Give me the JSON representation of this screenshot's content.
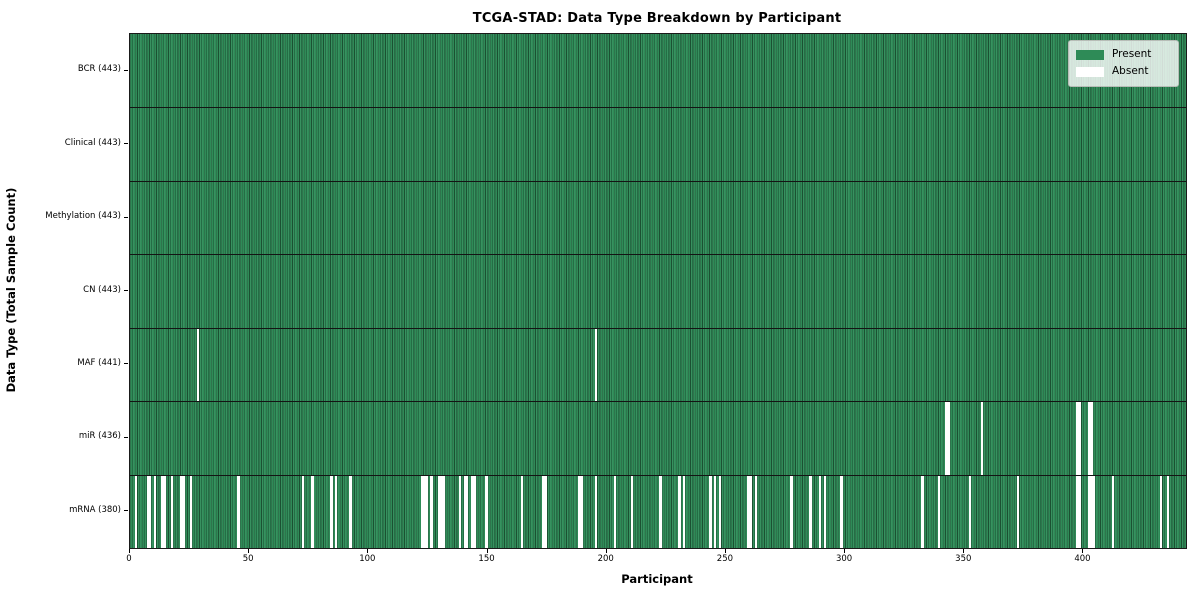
{
  "title": "TCGA-STAD: Data Type Breakdown by Participant",
  "xlabel": "Participant",
  "ylabel": "Data Type (Total Sample Count)",
  "legend": {
    "present_label": "Present",
    "absent_label": "Absent"
  },
  "colors": {
    "present": "#2e8b57",
    "absent": "#ffffff",
    "legend_background": "#dfe6df",
    "cell_edge": "#1a4d30"
  },
  "chart_data": {
    "type": "heatmap",
    "title": "TCGA-STAD: Data Type Breakdown by Participant",
    "xlabel": "Participant",
    "ylabel": "Data Type (Total Sample Count)",
    "legend_entries": [
      "Present",
      "Absent"
    ],
    "legend_position": "upper right",
    "grid": false,
    "n_participants": 443,
    "x_range": [
      0,
      443
    ],
    "x_ticks": [
      0,
      50,
      100,
      150,
      200,
      250,
      300,
      350,
      400
    ],
    "value_encoding": {
      "present": 1,
      "absent": 0
    },
    "rows": [
      {
        "name": "BCR",
        "label": "BCR (443)",
        "present_count": 443,
        "absent_count": 0,
        "absent_participants": []
      },
      {
        "name": "Clinical",
        "label": "Clinical (443)",
        "present_count": 443,
        "absent_count": 0,
        "absent_participants": []
      },
      {
        "name": "Methylation",
        "label": "Methylation (443)",
        "present_count": 443,
        "absent_count": 0,
        "absent_participants": []
      },
      {
        "name": "CN",
        "label": "CN (443)",
        "present_count": 443,
        "absent_count": 0,
        "absent_participants": []
      },
      {
        "name": "MAF",
        "label": "MAF (441)",
        "present_count": 441,
        "absent_count": 2,
        "absent_participants": [
          28,
          195
        ]
      },
      {
        "name": "miR",
        "label": "miR (436)",
        "present_count": 436,
        "absent_count": 7,
        "absent_participants": [
          342,
          343,
          357,
          397,
          398,
          402,
          403
        ]
      },
      {
        "name": "mRNA",
        "label": "mRNA (380)",
        "present_count": 380,
        "absent_count": 63,
        "absent_participants": [
          2,
          7,
          8,
          10,
          13,
          14,
          17,
          21,
          22,
          25,
          45,
          72,
          76,
          84,
          86,
          92,
          122,
          123,
          124,
          126,
          129,
          130,
          131,
          138,
          140,
          141,
          143,
          144,
          149,
          164,
          173,
          174,
          188,
          189,
          195,
          203,
          210,
          222,
          230,
          232,
          243,
          245,
          247,
          259,
          260,
          262,
          277,
          285,
          289,
          291,
          298,
          332,
          339,
          352,
          372,
          397,
          398,
          402,
          403,
          404,
          412,
          432,
          435
        ]
      }
    ]
  }
}
